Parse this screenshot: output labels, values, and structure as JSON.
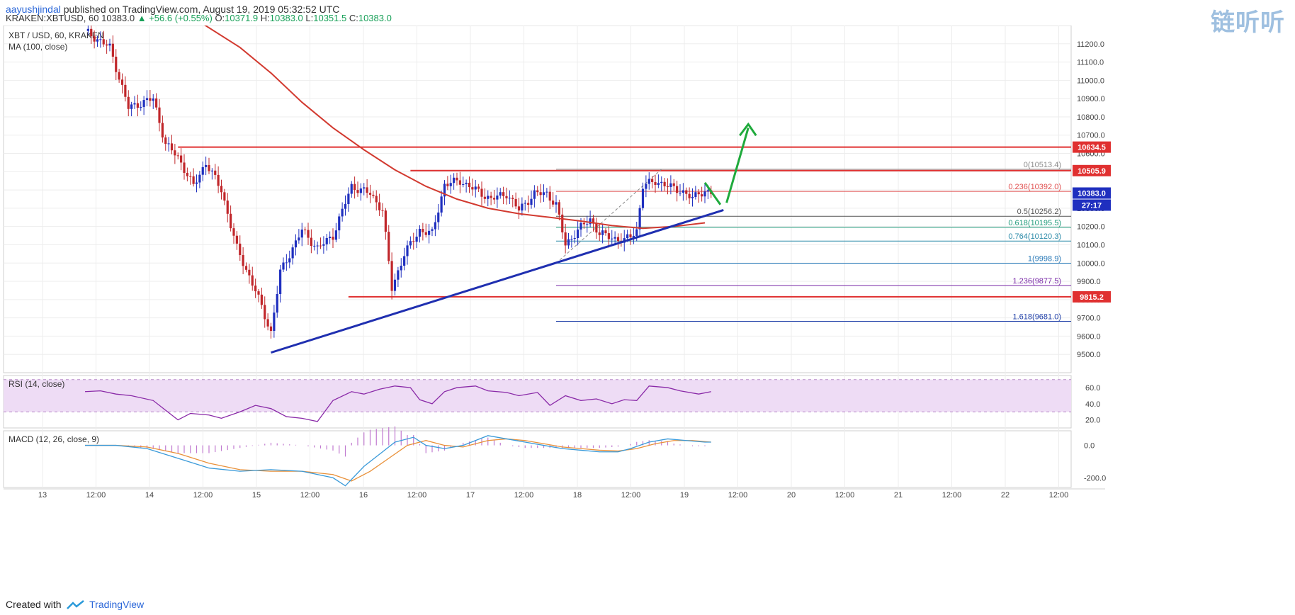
{
  "header": {
    "author": "aayushjindal",
    "published_text": "published on TradingView.com, August 19, 2019 05:32:52 UTC",
    "symbol": "KRAKEN:XBTUSD, 60",
    "last": "10383.0",
    "change_arrow": "▲",
    "change": "+56.6 (+0.55%)",
    "ohlc": {
      "o_label": "O:",
      "o": "10371.9",
      "h_label": "H:",
      "h": "10383.0",
      "l_label": "L:",
      "l": "10351.5",
      "c_label": "C:",
      "c": "10383.0"
    },
    "watermark": "链听听"
  },
  "footer": {
    "created_with": "Created with",
    "brand": "TradingView"
  },
  "colors": {
    "bull": "#1f2fbf",
    "bear": "#c0262a",
    "ma": "#d23a30",
    "trendline": "#1f2fb0",
    "resistance": "#e03030",
    "arrow": "#1faa3c",
    "rsi_band": "#eedcf5",
    "rsi_line": "#8a2aa8",
    "macd_line": "#3a9ad9",
    "signal_line": "#e9913a",
    "macd_hist": "#c07ad0"
  },
  "chart_data": [
    {
      "type": "candlestick",
      "pane": "price",
      "title": "XBT / USD, 60, KRAKEN",
      "indicator_label": "MA (100, close)",
      "x_ticks": [
        "13",
        "12:00",
        "14",
        "12:00",
        "15",
        "12:00",
        "16",
        "12:00",
        "17",
        "12:00",
        "18",
        "12:00",
        "19",
        "12:00",
        "20",
        "12:00",
        "21",
        "12:00",
        "22",
        "12:00"
      ],
      "y_ticks": [
        9500,
        9600,
        9700,
        9800,
        9900,
        10000,
        10100,
        10200,
        10300,
        10400,
        10500,
        10600,
        10700,
        10800,
        10900,
        11000,
        11100,
        11200
      ],
      "ylim": [
        9400,
        11300
      ],
      "price_labels": {
        "r1": "10634.5",
        "r2": "10505.9",
        "last": "10383.0",
        "countdown": "27:17",
        "s1": "9815.2"
      },
      "candle_path": [
        [
          0,
          11270
        ],
        [
          8,
          11180
        ],
        [
          14,
          10850
        ],
        [
          22,
          10900
        ],
        [
          26,
          10650
        ],
        [
          30,
          10580
        ],
        [
          35,
          10420
        ],
        [
          39,
          10550
        ],
        [
          44,
          10400
        ],
        [
          49,
          10080
        ],
        [
          55,
          9850
        ],
        [
          60,
          9620
        ],
        [
          63,
          9950
        ],
        [
          70,
          10180
        ],
        [
          75,
          10080
        ],
        [
          80,
          10150
        ],
        [
          86,
          10420
        ],
        [
          92,
          10380
        ],
        [
          96,
          10290
        ],
        [
          99,
          9860
        ],
        [
          103,
          10050
        ],
        [
          108,
          10180
        ],
        [
          112,
          10160
        ],
        [
          116,
          10430
        ],
        [
          121,
          10450
        ],
        [
          126,
          10400
        ],
        [
          131,
          10350
        ],
        [
          136,
          10380
        ],
        [
          140,
          10290
        ],
        [
          145,
          10380
        ],
        [
          149,
          10380
        ],
        [
          152,
          10320
        ],
        [
          155,
          10100
        ],
        [
          159,
          10180
        ],
        [
          163,
          10240
        ],
        [
          166,
          10160
        ],
        [
          170,
          10140
        ],
        [
          174,
          10120
        ],
        [
          178,
          10180
        ],
        [
          180,
          10420
        ],
        [
          184,
          10450
        ],
        [
          188,
          10420
        ],
        [
          192,
          10400
        ],
        [
          196,
          10350
        ],
        [
          198,
          10390
        ],
        [
          202,
          10383
        ]
      ],
      "ma100": [
        [
          37,
          11320
        ],
        [
          50,
          11180
        ],
        [
          60,
          11040
        ],
        [
          70,
          10880
        ],
        [
          80,
          10740
        ],
        [
          90,
          10620
        ],
        [
          100,
          10510
        ],
        [
          110,
          10420
        ],
        [
          120,
          10350
        ],
        [
          130,
          10300
        ],
        [
          140,
          10270
        ],
        [
          150,
          10250
        ],
        [
          160,
          10230
        ],
        [
          170,
          10205
        ],
        [
          180,
          10190
        ],
        [
          190,
          10200
        ],
        [
          200,
          10220
        ]
      ],
      "trendline": [
        [
          60,
          9510
        ],
        [
          206,
          10290
        ]
      ],
      "horizontal_levels": [
        {
          "value": 10634.5,
          "from_x": 30
        },
        {
          "value": 10505.9,
          "from_x": 105
        },
        {
          "value": 9815.2,
          "from_x": 85
        }
      ],
      "fib_retracement": {
        "from_x": 152,
        "levels": [
          {
            "ratio": "0",
            "value": 10513.4,
            "label": "0(10513.4)",
            "color": "#8c8c8c"
          },
          {
            "ratio": "0.236",
            "value": 10392.0,
            "label": "0.236(10392.0)",
            "color": "#e05050"
          },
          {
            "ratio": "0.5",
            "value": 10256.2,
            "label": "0.5(10256.2)",
            "color": "#555555"
          },
          {
            "ratio": "0.618",
            "value": 10195.5,
            "label": "0.618(10195.5)",
            "color": "#1f9a7a"
          },
          {
            "ratio": "0.764",
            "value": 10120.3,
            "label": "0.764(10120.3)",
            "color": "#2a8aa8"
          },
          {
            "ratio": "1",
            "value": 9998.9,
            "label": "1(9998.9)",
            "color": "#2a7ab8"
          },
          {
            "ratio": "1.236",
            "value": 9877.5,
            "label": "1.236(9877.5)",
            "color": "#7a2aa8"
          },
          {
            "ratio": "1.618",
            "value": 9681.0,
            "label": "1.618(9681.0)",
            "color": "#1f3fa8"
          }
        ]
      }
    },
    {
      "type": "line",
      "pane": "rsi",
      "title": "RSI (14, close)",
      "y_ticks": [
        20.0,
        40.0,
        60.0
      ],
      "ylim": [
        10,
        75
      ],
      "band": [
        30,
        70
      ],
      "series": [
        {
          "values": [
            [
              0,
              55
            ],
            [
              5,
              56
            ],
            [
              10,
              52
            ],
            [
              15,
              50
            ],
            [
              22,
              44
            ],
            [
              26,
              32
            ],
            [
              30,
              20
            ],
            [
              34,
              28
            ],
            [
              40,
              26
            ],
            [
              44,
              22
            ],
            [
              50,
              30
            ],
            [
              55,
              38
            ],
            [
              60,
              34
            ],
            [
              65,
              24
            ],
            [
              70,
              22
            ],
            [
              75,
              18
            ],
            [
              80,
              44
            ],
            [
              86,
              55
            ],
            [
              90,
              52
            ],
            [
              95,
              58
            ],
            [
              100,
              62
            ],
            [
              105,
              60
            ],
            [
              108,
              45
            ],
            [
              112,
              40
            ],
            [
              116,
              55
            ],
            [
              120,
              60
            ],
            [
              126,
              62
            ],
            [
              130,
              56
            ],
            [
              136,
              54
            ],
            [
              140,
              50
            ],
            [
              146,
              54
            ],
            [
              150,
              38
            ],
            [
              155,
              50
            ],
            [
              160,
              44
            ],
            [
              165,
              46
            ],
            [
              170,
              40
            ],
            [
              174,
              45
            ],
            [
              178,
              44
            ],
            [
              182,
              62
            ],
            [
              188,
              60
            ],
            [
              192,
              56
            ],
            [
              198,
              52
            ],
            [
              202,
              55
            ]
          ]
        }
      ]
    },
    {
      "type": "line",
      "pane": "macd",
      "title": "MACD (12, 26, close, 9)",
      "y_ticks": [
        0.0,
        -200.0
      ],
      "ylim": [
        -260,
        90
      ],
      "series": [
        {
          "values": [
            [
              0,
              0
            ],
            [
              10,
              0
            ],
            [
              20,
              -20
            ],
            [
              30,
              -80
            ],
            [
              40,
              -140
            ],
            [
              50,
              -160
            ],
            [
              60,
              -150
            ],
            [
              70,
              -160
            ],
            [
              80,
              -200
            ],
            [
              84,
              -250
            ],
            [
              90,
              -130
            ],
            [
              96,
              -40
            ],
            [
              100,
              20
            ],
            [
              106,
              50
            ],
            [
              110,
              0
            ],
            [
              116,
              -20
            ],
            [
              122,
              0
            ],
            [
              130,
              60
            ],
            [
              136,
              40
            ],
            [
              142,
              20
            ],
            [
              148,
              0
            ],
            [
              154,
              -20
            ],
            [
              160,
              -30
            ],
            [
              166,
              -40
            ],
            [
              172,
              -40
            ],
            [
              176,
              -20
            ],
            [
              182,
              20
            ],
            [
              188,
              40
            ],
            [
              194,
              30
            ],
            [
              200,
              20
            ],
            [
              202,
              20
            ]
          ]
        },
        {
          "values": [
            [
              0,
              0
            ],
            [
              10,
              0
            ],
            [
              20,
              -10
            ],
            [
              30,
              -50
            ],
            [
              40,
              -110
            ],
            [
              50,
              -150
            ],
            [
              60,
              -160
            ],
            [
              70,
              -160
            ],
            [
              80,
              -180
            ],
            [
              86,
              -220
            ],
            [
              92,
              -160
            ],
            [
              98,
              -80
            ],
            [
              104,
              0
            ],
            [
              110,
              30
            ],
            [
              116,
              0
            ],
            [
              122,
              -10
            ],
            [
              130,
              30
            ],
            [
              136,
              40
            ],
            [
              142,
              30
            ],
            [
              148,
              10
            ],
            [
              154,
              -10
            ],
            [
              160,
              -20
            ],
            [
              166,
              -30
            ],
            [
              172,
              -35
            ],
            [
              178,
              -20
            ],
            [
              184,
              10
            ],
            [
              190,
              30
            ],
            [
              196,
              30
            ],
            [
              202,
              20
            ]
          ]
        }
      ]
    }
  ]
}
